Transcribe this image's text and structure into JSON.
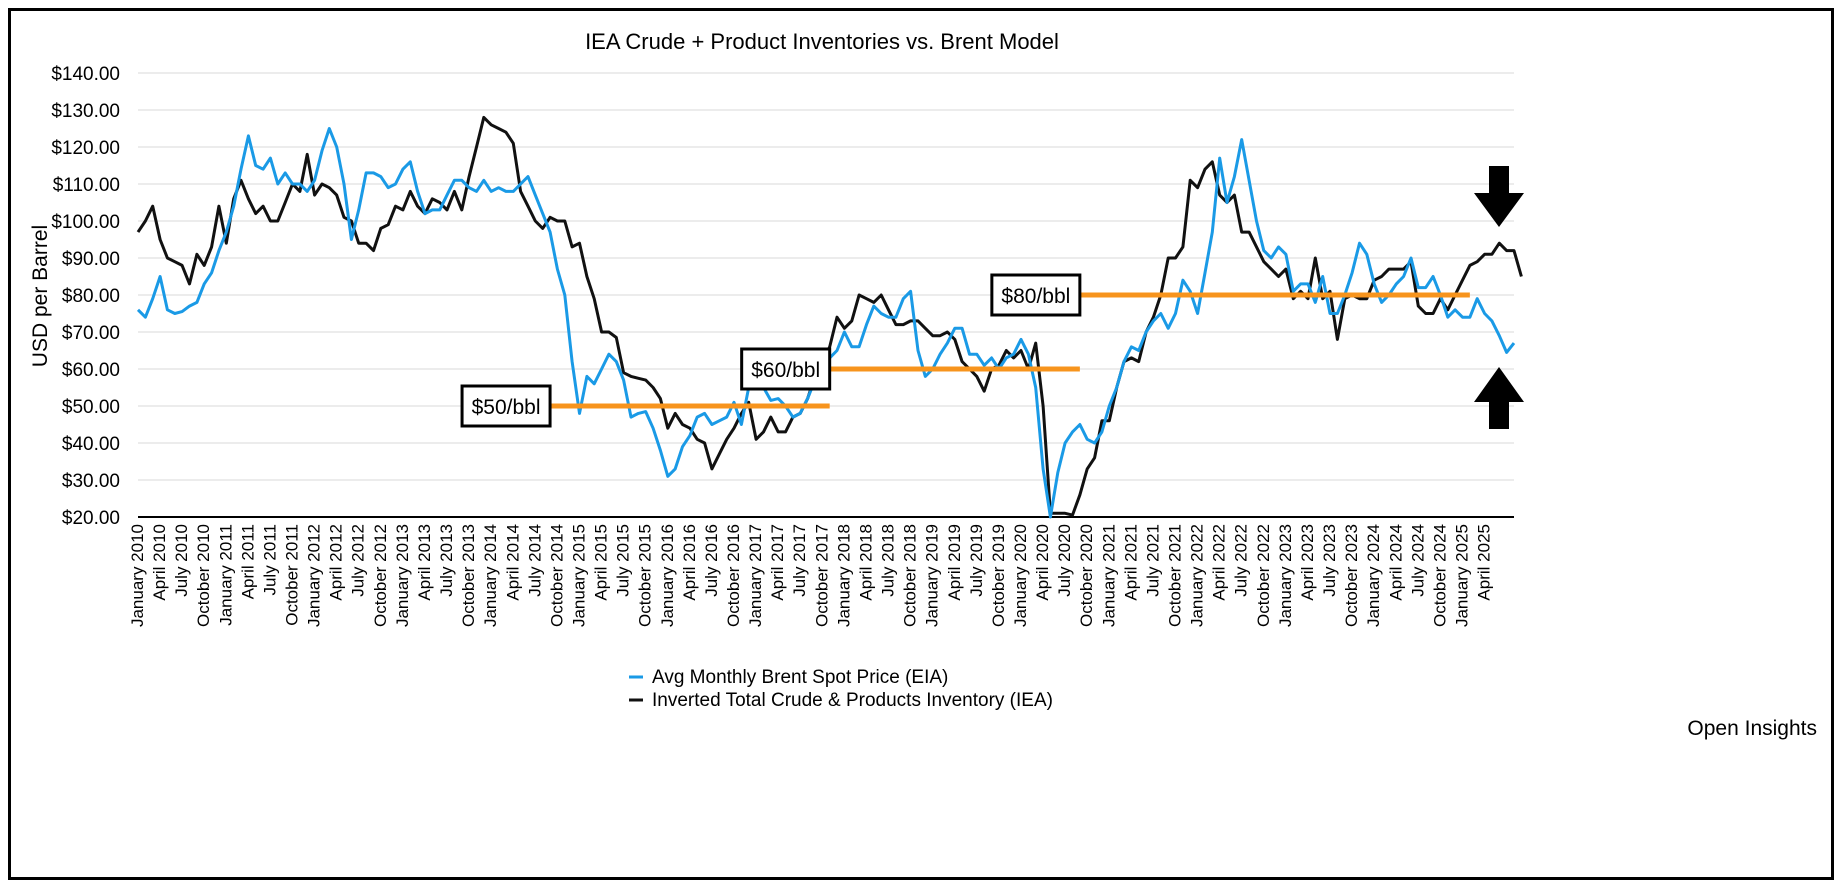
{
  "chart_data": {
    "type": "line",
    "title": "IEA Crude + Product Inventories vs. Brent Model",
    "ylabel": "USD per Barrel",
    "xlabel": "",
    "ylim": [
      20,
      140
    ],
    "yticks": [
      "$20.00",
      "$30.00",
      "$40.00",
      "$50.00",
      "$60.00",
      "$70.00",
      "$80.00",
      "$90.00",
      "$100.00",
      "$110.00",
      "$120.00",
      "$130.00",
      "$140.00"
    ],
    "x_start": "January 2010",
    "x_end": "June 2025",
    "x_tick_labels": [
      "January 2010",
      "April 2010",
      "July 2010",
      "October 2010",
      "January 2011",
      "April 2011",
      "July 2011",
      "October 2011",
      "January 2012",
      "April 2012",
      "July 2012",
      "October 2012",
      "January 2013",
      "April 2013",
      "July 2013",
      "October 2013",
      "January 2014",
      "April 2014",
      "July 2014",
      "October 2014",
      "January 2015",
      "April 2015",
      "July 2015",
      "October 2015",
      "January 2016",
      "April 2016",
      "July 2016",
      "October 2016",
      "January 2017",
      "April 2017",
      "July 2017",
      "October 2017",
      "January 2018",
      "April 2018",
      "July 2018",
      "October 2018",
      "January 2019",
      "April 2019",
      "July 2019",
      "October 2019",
      "January 2020",
      "April 2020",
      "July 2020",
      "October 2020",
      "January 2021",
      "April 2021",
      "July 2021",
      "October 2021",
      "January 2022",
      "April 2022",
      "July 2022",
      "October 2022",
      "January 2023",
      "April 2023",
      "July 2023",
      "October 2023",
      "January 2024",
      "April 2024",
      "July 2024",
      "October 2024",
      "January 2025",
      "April 2025"
    ],
    "grid": true,
    "legend_position": "bottom-center",
    "series": [
      {
        "name": "Avg Monthly Brent Spot Price (EIA)",
        "color": "#1a9ae6",
        "values": [
          76,
          74,
          79,
          85,
          76,
          75,
          75.5,
          77,
          78,
          83,
          86,
          92,
          97,
          104,
          114,
          123,
          115,
          114,
          117,
          110,
          113,
          110,
          110,
          108,
          111,
          119,
          125,
          120,
          110,
          95,
          103,
          113,
          113,
          112,
          109,
          110,
          114,
          116,
          108,
          102,
          103,
          103,
          107,
          111,
          111,
          109,
          108,
          111,
          108,
          109,
          108,
          108,
          110,
          112,
          107,
          102,
          97,
          87,
          80,
          62,
          48,
          58,
          56,
          60,
          64,
          62,
          57,
          47,
          48,
          48.5,
          44,
          38,
          31,
          33,
          39,
          42,
          47,
          48,
          45,
          46,
          47,
          51,
          45,
          55,
          55,
          55,
          51.5,
          52,
          50,
          47,
          48,
          52,
          57,
          63,
          63,
          65,
          70,
          66,
          66,
          72,
          77,
          75,
          74,
          74,
          79,
          81,
          65,
          58,
          60,
          64,
          67,
          71,
          71,
          64,
          64,
          61,
          63,
          60,
          63,
          64,
          68,
          64,
          55,
          33,
          20,
          32,
          40,
          43,
          45,
          41,
          40,
          43,
          50,
          55,
          62,
          66,
          65,
          70,
          73,
          75,
          71,
          75,
          84,
          81,
          75,
          86,
          97,
          117,
          105,
          112,
          122,
          111,
          100,
          92,
          90,
          93,
          91,
          81,
          83,
          83,
          78,
          85,
          75,
          75,
          80,
          86,
          94,
          91,
          83,
          78,
          80,
          83,
          85,
          90,
          82,
          82,
          85,
          80,
          74,
          76,
          74,
          74,
          79,
          75,
          73,
          69,
          64.5,
          67
        ]
      },
      {
        "name": "Inverted Total Crude & Products Inventory (IEA)",
        "color": "#111111",
        "values": [
          97,
          100,
          104,
          95,
          90,
          89,
          88,
          83,
          91,
          88,
          93,
          104,
          94,
          106,
          111,
          106,
          102,
          104,
          100,
          100,
          105,
          110,
          108,
          118,
          107,
          110,
          109,
          107,
          101,
          100,
          94,
          94,
          92,
          98,
          99,
          104,
          103,
          108,
          104,
          102,
          106,
          105,
          103,
          108,
          103,
          112,
          120,
          128,
          126,
          125,
          124,
          121,
          108,
          104,
          100,
          98,
          101,
          100,
          100,
          93,
          94,
          85,
          79,
          70,
          70,
          68.5,
          59,
          58,
          57.5,
          57,
          55,
          52,
          44,
          48,
          45,
          44,
          41,
          40,
          33,
          37,
          41,
          44,
          48,
          51,
          41,
          43,
          47,
          43,
          43,
          47,
          48,
          52,
          58,
          62,
          66,
          74,
          71,
          73,
          80,
          79,
          78,
          80,
          76,
          72,
          72,
          73,
          73,
          71,
          69,
          69,
          70,
          68,
          62,
          60,
          58,
          54,
          60,
          61,
          65,
          63,
          65,
          60,
          67,
          50,
          21,
          21,
          21,
          20.5,
          26,
          33,
          36,
          46,
          46,
          55,
          62,
          63,
          62,
          70,
          74,
          80,
          90,
          90,
          93,
          111,
          109,
          114,
          116,
          107,
          105,
          107,
          97,
          97,
          93,
          89,
          87,
          85,
          87,
          79,
          81,
          79,
          90,
          79,
          81,
          68,
          79,
          80,
          79,
          79,
          84,
          85,
          87,
          87,
          87,
          89,
          77,
          75,
          75,
          79,
          76,
          80,
          84,
          88,
          89,
          91,
          91,
          94,
          92,
          92,
          85
        ]
      }
    ],
    "reference_lines": [
      {
        "label": "$50/bbl",
        "value": 50,
        "from": "September 2014",
        "to": "November 2017",
        "color": "#f7941d"
      },
      {
        "label": "$60/bbl",
        "value": 60,
        "from": "November 2017",
        "to": "September 2020",
        "color": "#f7941d"
      },
      {
        "label": "$80/bbl",
        "value": 80,
        "from": "September 2020",
        "to": "February 2025",
        "color": "#f7941d"
      }
    ],
    "annotations": [
      "down-arrow",
      "up-arrow"
    ]
  },
  "credit": "Open Insights",
  "colors": {
    "brent": "#1a9ae6",
    "inventory": "#111111",
    "reference": "#f7941d",
    "grid": "#d9d9d9",
    "arrow": "#000000"
  }
}
